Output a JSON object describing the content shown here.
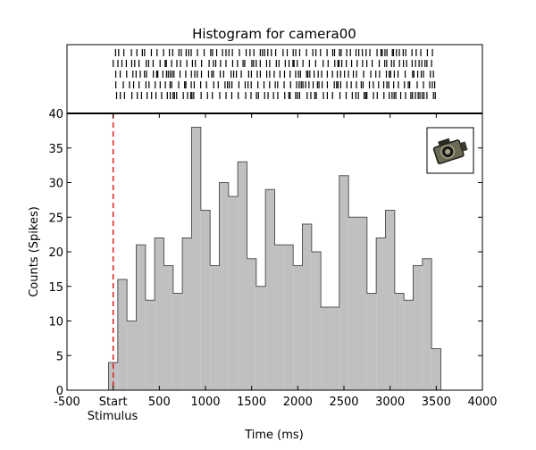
{
  "chart_data": {
    "type": "histogram",
    "title": "Histogram for camera00",
    "xlabel": "Time (ms)",
    "ylabel": "Counts (Spikes)",
    "xlim": [
      -500,
      4000
    ],
    "ylim": [
      0,
      40
    ],
    "xticks": [
      {
        "value": -500,
        "label": "-500"
      },
      {
        "value": 0,
        "label": "Start"
      },
      {
        "value": 500,
        "label": "500"
      },
      {
        "value": 1000,
        "label": "1000"
      },
      {
        "value": 1500,
        "label": "1500"
      },
      {
        "value": 2000,
        "label": "2000"
      },
      {
        "value": 2500,
        "label": "2500"
      },
      {
        "value": 3000,
        "label": "3000"
      },
      {
        "value": 3500,
        "label": "3500"
      },
      {
        "value": 4000,
        "label": "4000"
      }
    ],
    "xtick_sublabel": "Stimulus",
    "yticks": [
      0,
      5,
      10,
      15,
      20,
      25,
      30,
      35,
      40
    ],
    "bin_start": -50,
    "bin_width": 100,
    "values": [
      4,
      16,
      10,
      21,
      13,
      22,
      18,
      14,
      22,
      38,
      26,
      18,
      30,
      28,
      33,
      19,
      15,
      29,
      21,
      21,
      18,
      24,
      20,
      12,
      12,
      31,
      25,
      25,
      14,
      22,
      26,
      14,
      13,
      18,
      19,
      6
    ],
    "stimulus_marker": {
      "x": 0,
      "style": "dashed",
      "color": "#e8191c"
    },
    "fill_color": "#c0c0c0",
    "edge_color": "#555555",
    "raster": {
      "rows": 5,
      "x_range": [
        0,
        3500
      ]
    },
    "thumbnail_icon": "camera-icon"
  }
}
